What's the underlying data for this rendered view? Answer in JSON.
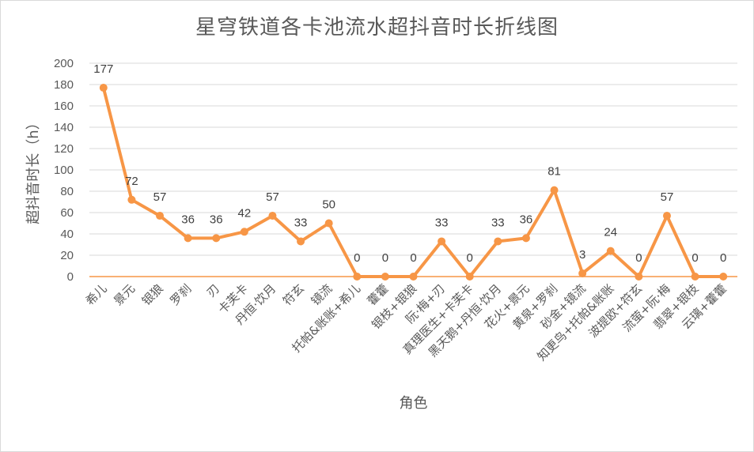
{
  "chart_data": {
    "type": "line",
    "title": "星穹铁道各卡池流水超抖音时长折线图",
    "xlabel": "角色",
    "ylabel": "超抖音时长（h）",
    "ylim": [
      0,
      200
    ],
    "yticks": [
      0,
      20,
      40,
      60,
      80,
      100,
      120,
      140,
      160,
      180,
      200
    ],
    "grid": true,
    "legend": "none",
    "color": "#F79646",
    "categories": [
      "希儿",
      "景元",
      "银狼",
      "罗刹",
      "刃",
      "卡芙卡",
      "丹恒·饮月",
      "符玄",
      "镜流",
      "托帕&账账+希儿",
      "藿藿",
      "银枝+银狼",
      "阮·梅+刃",
      "真理医生+卡芙卡",
      "黑天鹅+丹恒·饮月",
      "花火+景元",
      "黄泉+罗刹",
      "砂金+镜流",
      "知更鸟+托帕&账账",
      "波提欧+符玄",
      "流萤+阮·梅",
      "翡翠+银枝",
      "云璃+藿藿"
    ],
    "series": [
      {
        "values": [
          177,
          72,
          57,
          36,
          36,
          42,
          57,
          33,
          50,
          0,
          0,
          0,
          33,
          0,
          33,
          36,
          81,
          3,
          24,
          0,
          57,
          0,
          0
        ]
      }
    ]
  }
}
